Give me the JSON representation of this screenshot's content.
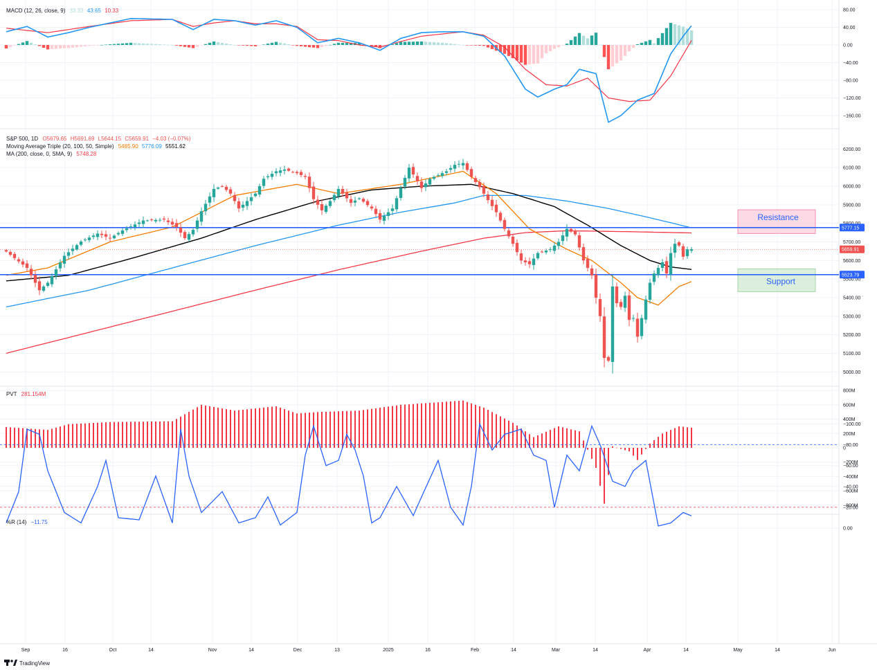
{
  "colors": {
    "up": "#26a69a",
    "down": "#ef5350",
    "macd_line": "#2196f3",
    "signal_line": "#f23645",
    "hist_up_strong": "#26a69a",
    "hist_up_weak": "#b2dfdb",
    "hist_down_strong": "#ff5252",
    "hist_down_weak": "#ffcdd2",
    "ma20": "#f57c00",
    "ma50": "#000000",
    "ma100": "#2196f3",
    "ma200": "#f23645",
    "level_line": "#2962ff",
    "pvt": "#f23645",
    "willr": "#2962ff",
    "resistance_fill": "#f8bbd0",
    "support_fill": "#c8e6c9"
  },
  "macd_panel": {
    "label_name": "MACD (12, 26, close, 9)",
    "val1": "33.33",
    "val2": "43.65",
    "val3": "10.33",
    "ticks": [
      "80.00",
      "40.00",
      "0.00",
      "−40.00",
      "−80.00",
      "−120.00",
      "−160.00"
    ]
  },
  "price_panel": {
    "line1_name": "S&P 500, 1D",
    "o": "O5679.65",
    "h": "H5691.69",
    "l": "L5644.15",
    "c": "C5659.91",
    "chg": "−4.03 (−0.07%)",
    "line2_name": "Moving Average Triple (20, 100, 50, Simple)",
    "ma20_val": "5485.90",
    "ma100_val": "5776.09",
    "ma50_val": "5551.62",
    "line3_name": "MA (200, close, 0, SMA, 9)",
    "ma200_val": "5748.28",
    "ticks": [
      "6200.00",
      "6100.00",
      "6000.00",
      "5900.00",
      "5800.00",
      "5700.00",
      "5600.00",
      "5500.00",
      "5400.00",
      "5300.00",
      "5200.00",
      "5100.00",
      "5000.00"
    ],
    "resistance_badge": "5777.15",
    "current_badge": "5659.91",
    "support_badge": "5523.79",
    "resistance_label": "Resistance",
    "support_label": "Support"
  },
  "pvt_panel": {
    "label_name": "PVT",
    "value": "281.154M",
    "ticks": [
      "800M",
      "600M",
      "400M",
      "200M",
      "0",
      "−200M",
      "−400M",
      "−600M",
      "−800M"
    ]
  },
  "willr_panel": {
    "label_name": "%R (14)",
    "value": "−11.75",
    "ticks": [
      "0.00",
      "−20.00",
      "−40.00",
      "−60.00",
      "−80.00",
      "−100.00"
    ]
  },
  "date_labels": [
    "Sep",
    "16",
    "Oct",
    "14",
    "Nov",
    "14",
    "Dec",
    "13",
    "2025",
    "16",
    "Feb",
    "14",
    "Mar",
    "14",
    "Apr",
    "14",
    "May",
    "14",
    "Jun"
  ],
  "logo_text": "TradingView",
  "chart_data": {
    "type": "candlestick",
    "title": "S&P 500, 1D",
    "x_axis_ticks": [
      "Sep",
      "16",
      "Oct",
      "14",
      "Nov",
      "14",
      "Dec",
      "13",
      "2025",
      "16",
      "Feb",
      "14",
      "Mar",
      "14",
      "Apr",
      "14",
      "May",
      "14",
      "Jun"
    ],
    "price_range": [
      4850,
      6260
    ],
    "last_close": 5659.91,
    "horizontal_levels": [
      {
        "name": "Resistance",
        "value": 5777.15
      },
      {
        "name": "Support",
        "value": 5523.79
      }
    ],
    "price_anchors": [
      [
        0,
        5648
      ],
      [
        5,
        5560
      ],
      [
        8,
        5440
      ],
      [
        10,
        5480
      ],
      [
        14,
        5625
      ],
      [
        18,
        5702
      ],
      [
        22,
        5745
      ],
      [
        25,
        5720
      ],
      [
        28,
        5762
      ],
      [
        33,
        5815
      ],
      [
        38,
        5820
      ],
      [
        41,
        5780
      ],
      [
        43,
        5720
      ],
      [
        45,
        5765
      ],
      [
        47,
        5865
      ],
      [
        50,
        5985
      ],
      [
        52,
        6000
      ],
      [
        54,
        5960
      ],
      [
        56,
        5880
      ],
      [
        60,
        5960
      ],
      [
        62,
        6040
      ],
      [
        65,
        6080
      ],
      [
        67,
        6090
      ],
      [
        70,
        6070
      ],
      [
        72,
        6050
      ],
      [
        74,
        5930
      ],
      [
        76,
        5870
      ],
      [
        78,
        5920
      ],
      [
        80,
        5985
      ],
      [
        83,
        5910
      ],
      [
        85,
        5935
      ],
      [
        88,
        5880
      ],
      [
        90,
        5820
      ],
      [
        93,
        5880
      ],
      [
        95,
        5990
      ],
      [
        97,
        6100
      ],
      [
        100,
        5990
      ],
      [
        102,
        6040
      ],
      [
        104,
        6060
      ],
      [
        106,
        6080
      ],
      [
        108,
        6115
      ],
      [
        110,
        6125
      ],
      [
        112,
        6050
      ],
      [
        114,
        5995
      ],
      [
        116,
        5925
      ],
      [
        118,
        5860
      ],
      [
        120,
        5770
      ],
      [
        122,
        5690
      ],
      [
        124,
        5600
      ],
      [
        126,
        5580
      ],
      [
        128,
        5640
      ],
      [
        131,
        5660
      ],
      [
        133,
        5700
      ],
      [
        135,
        5770
      ],
      [
        137,
        5740
      ],
      [
        139,
        5600
      ],
      [
        141,
        5520
      ],
      [
        142,
        5400
      ],
      [
        143,
        5300
      ],
      [
        144,
        5075
      ],
      [
        145,
        5060
      ],
      [
        146,
        5460
      ],
      [
        147,
        5370
      ],
      [
        148,
        5350
      ],
      [
        149,
        5410
      ],
      [
        150,
        5280
      ],
      [
        151,
        5290
      ],
      [
        152,
        5190
      ],
      [
        153,
        5290
      ],
      [
        154,
        5390
      ],
      [
        155,
        5480
      ],
      [
        156,
        5530
      ],
      [
        157,
        5560
      ],
      [
        158,
        5590
      ],
      [
        159,
        5530
      ],
      [
        160,
        5640
      ],
      [
        161,
        5690
      ],
      [
        162,
        5680
      ],
      [
        163,
        5620
      ],
      [
        164,
        5660
      ],
      [
        165,
        5660
      ]
    ],
    "moving_average_anchors": {
      "ma20": [
        [
          0,
          5520
        ],
        [
          10,
          5560
        ],
        [
          25,
          5700
        ],
        [
          40,
          5780
        ],
        [
          55,
          5950
        ],
        [
          70,
          6010
        ],
        [
          80,
          5960
        ],
        [
          95,
          6010
        ],
        [
          110,
          6080
        ],
        [
          118,
          5960
        ],
        [
          126,
          5770
        ],
        [
          135,
          5660
        ],
        [
          141,
          5600
        ],
        [
          148,
          5480
        ],
        [
          152,
          5400
        ],
        [
          157,
          5360
        ],
        [
          162,
          5460
        ],
        [
          165,
          5485.9
        ]
      ],
      "ma50": [
        [
          0,
          5490
        ],
        [
          15,
          5520
        ],
        [
          30,
          5610
        ],
        [
          47,
          5720
        ],
        [
          60,
          5820
        ],
        [
          75,
          5920
        ],
        [
          88,
          5980
        ],
        [
          100,
          6000
        ],
        [
          112,
          6010
        ],
        [
          122,
          5960
        ],
        [
          132,
          5890
        ],
        [
          140,
          5790
        ],
        [
          148,
          5680
        ],
        [
          155,
          5600
        ],
        [
          160,
          5565
        ],
        [
          165,
          5551.62
        ]
      ],
      "ma100": [
        [
          0,
          5350
        ],
        [
          20,
          5440
        ],
        [
          40,
          5560
        ],
        [
          60,
          5680
        ],
        [
          80,
          5790
        ],
        [
          95,
          5860
        ],
        [
          108,
          5910
        ],
        [
          115,
          5950
        ],
        [
          125,
          5950
        ],
        [
          135,
          5920
        ],
        [
          145,
          5880
        ],
        [
          155,
          5830
        ],
        [
          165,
          5776.09
        ]
      ],
      "ma200": [
        [
          0,
          5100
        ],
        [
          30,
          5270
        ],
        [
          60,
          5440
        ],
        [
          80,
          5550
        ],
        [
          100,
          5650
        ],
        [
          115,
          5720
        ],
        [
          125,
          5750
        ],
        [
          135,
          5760
        ],
        [
          150,
          5755
        ],
        [
          165,
          5748.28
        ]
      ]
    },
    "macd": {
      "macd_line_anchors": [
        [
          0,
          30
        ],
        [
          5,
          42
        ],
        [
          10,
          18
        ],
        [
          15,
          28
        ],
        [
          20,
          40
        ],
        [
          30,
          60
        ],
        [
          40,
          58
        ],
        [
          45,
          35
        ],
        [
          50,
          58
        ],
        [
          55,
          55
        ],
        [
          60,
          45
        ],
        [
          65,
          55
        ],
        [
          70,
          40
        ],
        [
          75,
          5
        ],
        [
          80,
          15
        ],
        [
          85,
          5
        ],
        [
          90,
          -12
        ],
        [
          95,
          15
        ],
        [
          100,
          28
        ],
        [
          105,
          30
        ],
        [
          110,
          30
        ],
        [
          115,
          20
        ],
        [
          120,
          -25
        ],
        [
          125,
          -100
        ],
        [
          128,
          -118
        ],
        [
          132,
          -100
        ],
        [
          135,
          -90
        ],
        [
          138,
          -55
        ],
        [
          142,
          -65
        ],
        [
          145,
          -175
        ],
        [
          148,
          -160
        ],
        [
          152,
          -125
        ],
        [
          156,
          -110
        ],
        [
          160,
          -20
        ],
        [
          163,
          20
        ],
        [
          165,
          43.65
        ]
      ],
      "signal_line_anchors": [
        [
          0,
          38
        ],
        [
          10,
          28
        ],
        [
          20,
          42
        ],
        [
          30,
          55
        ],
        [
          40,
          58
        ],
        [
          45,
          42
        ],
        [
          50,
          50
        ],
        [
          55,
          55
        ],
        [
          60,
          48
        ],
        [
          65,
          48
        ],
        [
          70,
          42
        ],
        [
          75,
          12
        ],
        [
          80,
          10
        ],
        [
          85,
          0
        ],
        [
          90,
          -5
        ],
        [
          95,
          8
        ],
        [
          100,
          20
        ],
        [
          105,
          25
        ],
        [
          110,
          30
        ],
        [
          115,
          22
        ],
        [
          120,
          -5
        ],
        [
          125,
          -55
        ],
        [
          130,
          -90
        ],
        [
          135,
          -93
        ],
        [
          140,
          -75
        ],
        [
          145,
          -120
        ],
        [
          150,
          -128
        ],
        [
          155,
          -125
        ],
        [
          160,
          -70
        ],
        [
          165,
          10.33
        ]
      ]
    },
    "pvt_anchors": [
      [
        0,
        290
      ],
      [
        10,
        250
      ],
      [
        15,
        330
      ],
      [
        25,
        360
      ],
      [
        40,
        370
      ],
      [
        47,
        600
      ],
      [
        55,
        520
      ],
      [
        65,
        580
      ],
      [
        70,
        480
      ],
      [
        75,
        500
      ],
      [
        85,
        520
      ],
      [
        95,
        600
      ],
      [
        105,
        640
      ],
      [
        110,
        660
      ],
      [
        115,
        560
      ],
      [
        122,
        350
      ],
      [
        127,
        150
      ],
      [
        133,
        300
      ],
      [
        138,
        230
      ],
      [
        142,
        -280
      ],
      [
        144,
        -780
      ],
      [
        146,
        20
      ],
      [
        150,
        -50
      ],
      [
        152,
        -170
      ],
      [
        155,
        60
      ],
      [
        158,
        200
      ],
      [
        162,
        300
      ],
      [
        165,
        281.154
      ]
    ],
    "williams_r_anchors": [
      [
        0,
        -5
      ],
      [
        3,
        -35
      ],
      [
        5,
        -95
      ],
      [
        8,
        -90
      ],
      [
        10,
        -55
      ],
      [
        14,
        -15
      ],
      [
        18,
        -5
      ],
      [
        22,
        -40
      ],
      [
        24,
        -65
      ],
      [
        27,
        -10
      ],
      [
        32,
        -8
      ],
      [
        36,
        -50
      ],
      [
        40,
        -5
      ],
      [
        42,
        -95
      ],
      [
        44,
        -50
      ],
      [
        47,
        -15
      ],
      [
        52,
        -35
      ],
      [
        56,
        -5
      ],
      [
        60,
        -10
      ],
      [
        63,
        -30
      ],
      [
        66,
        -3
      ],
      [
        70,
        -15
      ],
      [
        72,
        -70
      ],
      [
        74,
        -98
      ],
      [
        77,
        -60
      ],
      [
        80,
        -65
      ],
      [
        82,
        -90
      ],
      [
        84,
        -75
      ],
      [
        86,
        -50
      ],
      [
        88,
        -5
      ],
      [
        90,
        -10
      ],
      [
        94,
        -40
      ],
      [
        98,
        -12
      ],
      [
        100,
        -30
      ],
      [
        104,
        -65
      ],
      [
        107,
        -20
      ],
      [
        110,
        -3
      ],
      [
        112,
        -40
      ],
      [
        114,
        -100
      ],
      [
        117,
        -75
      ],
      [
        120,
        -90
      ],
      [
        124,
        -95
      ],
      [
        127,
        -70
      ],
      [
        130,
        -65
      ],
      [
        132,
        -20
      ],
      [
        135,
        -70
      ],
      [
        138,
        -55
      ],
      [
        141,
        -98
      ],
      [
        143,
        -80
      ],
      [
        146,
        -45
      ],
      [
        149,
        -40
      ],
      [
        151,
        -55
      ],
      [
        154,
        -65
      ],
      [
        157,
        -2
      ],
      [
        160,
        -5
      ],
      [
        163,
        -15
      ],
      [
        165,
        -11.75
      ]
    ]
  }
}
